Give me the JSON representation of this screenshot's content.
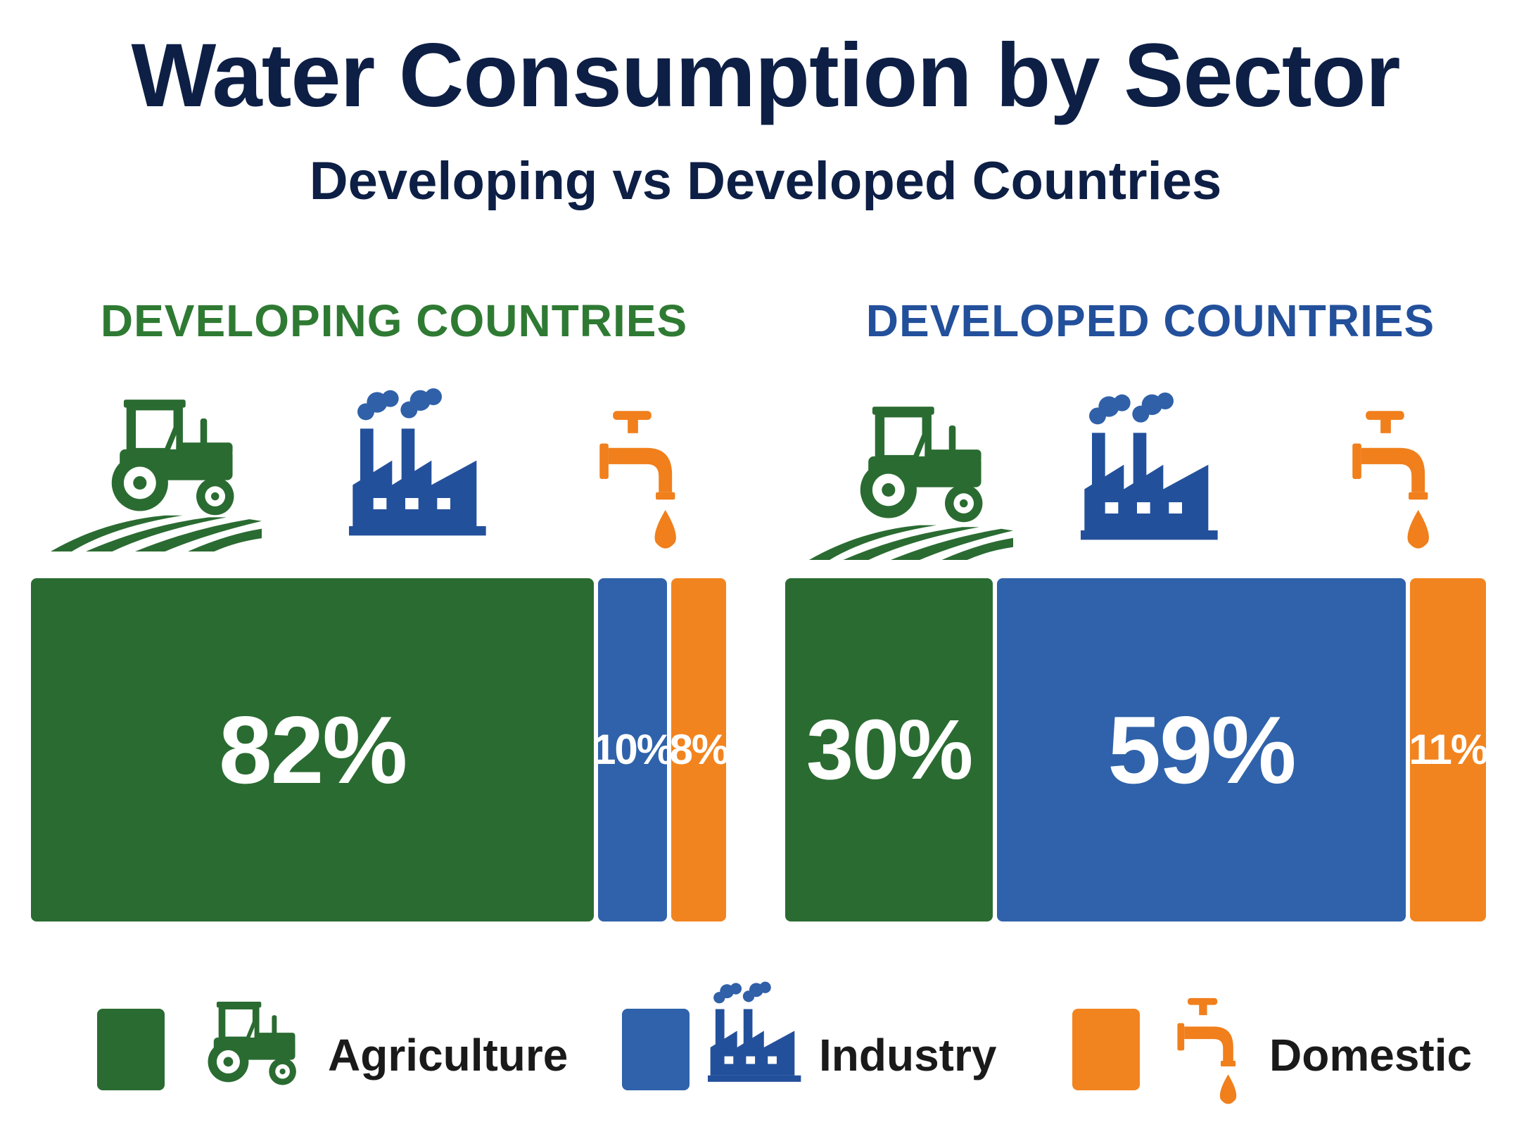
{
  "chart_data": {
    "type": "bar",
    "stacked": true,
    "orientation": "horizontal-100-percent",
    "title": "Water Consumption by Sector",
    "subtitle": "Developing vs Developed Countries",
    "groups": [
      {
        "name": "DEVELOPING COUNTRIES",
        "heading_color": "#2f7a33",
        "segments": [
          {
            "sector": "Agriculture",
            "value": 82,
            "label": "82%"
          },
          {
            "sector": "Industry",
            "value": 10,
            "label": "10%"
          },
          {
            "sector": "Domestic",
            "value": 8,
            "label": "8%"
          }
        ]
      },
      {
        "name": "DEVELOPED COUNTRIES",
        "heading_color": "#23509b",
        "segments": [
          {
            "sector": "Agriculture",
            "value": 30,
            "label": "30%"
          },
          {
            "sector": "Industry",
            "value": 59,
            "label": "59%"
          },
          {
            "sector": "Domestic",
            "value": 11,
            "label": "11%"
          }
        ]
      }
    ],
    "legend": [
      {
        "name": "Agriculture",
        "color": "#2a6b31",
        "icon": "tractor-icon"
      },
      {
        "name": "Industry",
        "color": "#2f62aa",
        "icon": "factory-icon"
      },
      {
        "name": "Domestic",
        "color": "#f2841f",
        "icon": "faucet-icon"
      }
    ],
    "legend_placement": "bottom"
  }
}
